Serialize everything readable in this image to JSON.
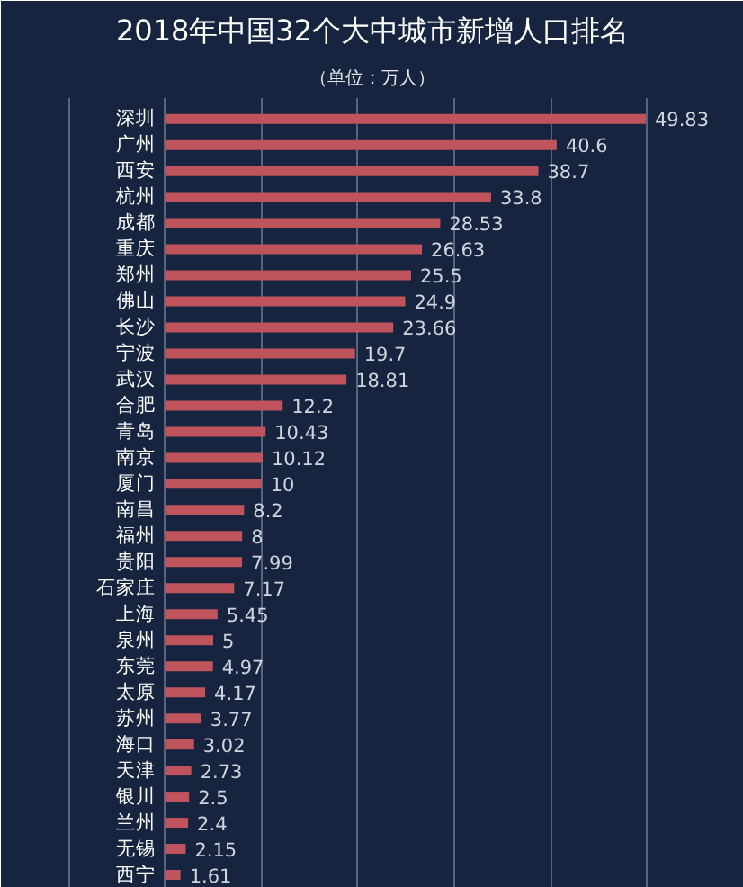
{
  "chart_data": {
    "type": "bar",
    "orientation": "horizontal",
    "title": "2018年中国32个大中城市新增人口排名",
    "subtitle": "（单位：万人）",
    "categories": [
      "深圳",
      "广州",
      "西安",
      "杭州",
      "成都",
      "重庆",
      "郑州",
      "佛山",
      "长沙",
      "宁波",
      "武汉",
      "合肥",
      "青岛",
      "南京",
      "厦门",
      "南昌",
      "福州",
      "贵阳",
      "石家庄",
      "上海",
      "泉州",
      "东莞",
      "太原",
      "苏州",
      "海口",
      "天津",
      "银川",
      "兰州",
      "无锡",
      "西宁"
    ],
    "values": [
      49.83,
      40.6,
      38.7,
      33.8,
      28.53,
      26.63,
      25.5,
      24.9,
      23.66,
      19.7,
      18.81,
      12.2,
      10.43,
      10.12,
      10,
      8.2,
      8,
      7.99,
      7.17,
      5.45,
      5,
      4.97,
      4.17,
      3.77,
      3.02,
      2.73,
      2.5,
      2.4,
      2.15,
      1.61
    ],
    "color": "#c0545c",
    "data_labels": true,
    "grid": "x",
    "tick_labels": "y",
    "xlim": [
      -17,
      60
    ],
    "xticks": [
      {
        "value": -10,
        "label": null
      },
      {
        "value": 0,
        "label": null
      },
      {
        "value": 10,
        "label": null
      },
      {
        "value": 20,
        "label": null
      },
      {
        "value": 30,
        "label": null
      },
      {
        "value": 40,
        "label": null
      },
      {
        "value": 50,
        "label": null
      }
    ]
  }
}
